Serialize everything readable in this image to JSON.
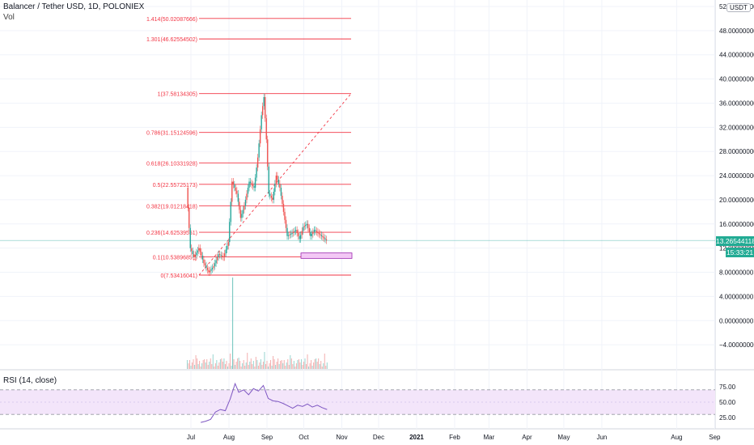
{
  "header": {
    "symbol": "Balancer / Tether USD, 1D, POLONIEX",
    "volume_label": "Vol",
    "currency_badge": "USDT"
  },
  "price_tag": {
    "last_price": "13.26544118",
    "countdown": "15:33:21"
  },
  "rsi": {
    "label": "RSI (14, close)",
    "ticks": [
      "75.00",
      "50.00",
      "25.00"
    ]
  },
  "colors": {
    "up": "#26a69a",
    "down": "#ef5350",
    "fib": "#f23645",
    "rsi_line": "#7e57c2",
    "rsi_band": "#f3e5fa"
  },
  "chart_data": [
    {
      "type": "line",
      "title": "Balancer / Tether USD, 1D, POLONIEX",
      "y_ticks": [
        "52.00000000",
        "48.00000000",
        "44.00000000",
        "40.00000000",
        "36.00000000",
        "32.00000000",
        "28.00000000",
        "24.00000000",
        "20.00000000",
        "16.00000000",
        "12.00000000",
        "8.00000000",
        "4.00000000",
        "0.00000000",
        "−4.00000000"
      ],
      "x_ticks": [
        "Jul",
        "Aug",
        "Sep",
        "Oct",
        "Nov",
        "Dec",
        "2021",
        "Feb",
        "Mar",
        "Apr",
        "May",
        "Jun",
        "Aug",
        "Sep"
      ],
      "ylim": [
        -6,
        53
      ],
      "price_series": {
        "x": [
          "2020-06-28",
          "2020-07-01",
          "2020-07-04",
          "2020-07-08",
          "2020-07-12",
          "2020-07-16",
          "2020-07-20",
          "2020-07-24",
          "2020-07-28",
          "2020-08-01",
          "2020-08-04",
          "2020-08-08",
          "2020-08-11",
          "2020-08-14",
          "2020-08-18",
          "2020-08-22",
          "2020-08-25",
          "2020-08-28",
          "2020-08-30",
          "2020-09-01",
          "2020-09-03",
          "2020-09-06",
          "2020-09-09",
          "2020-09-12",
          "2020-09-15",
          "2020-09-18",
          "2020-09-22",
          "2020-09-25",
          "2020-09-28",
          "2020-10-01",
          "2020-10-04",
          "2020-10-07",
          "2020-10-10",
          "2020-10-13",
          "2020-10-17",
          "2020-10-20"
        ],
        "y": [
          22,
          12,
          10.5,
          12,
          9.5,
          8,
          9,
          11,
          10.5,
          13,
          23,
          21,
          17,
          19,
          23,
          22,
          27,
          34,
          37,
          30,
          21,
          20,
          24,
          22,
          18,
          14,
          14.5,
          15,
          13.5,
          15.5,
          16,
          14,
          15,
          14.5,
          13.8,
          13.27
        ]
      },
      "fib_levels": [
        {
          "label": "1.414(50.02087666)",
          "value": 50.02087666
        },
        {
          "label": "1.301(46.62554502)",
          "value": 46.62554502
        },
        {
          "label": "1(37.58134305)",
          "value": 37.58134305
        },
        {
          "label": "0.786(31.15124596)",
          "value": 31.15124596
        },
        {
          "label": "0.618(26.10331928)",
          "value": 26.10331928
        },
        {
          "label": "0.5(22.55725173)",
          "value": 22.55725173
        },
        {
          "label": "0.382(19.01218418)",
          "value": 19.01218418
        },
        {
          "label": "0.236(14.62539551)",
          "value": 14.62539551
        },
        {
          "label": "0.1(10.53896851)",
          "value": 10.53896851
        },
        {
          "label": "0(7.53416041)",
          "value": 7.53416041
        }
      ],
      "volume_spike": {
        "x": "2020-08-04"
      }
    },
    {
      "type": "line",
      "title": "RSI (14, close)",
      "ylim": [
        15,
        85
      ],
      "y_ticks": [
        "75.00",
        "50.00",
        "25.00"
      ],
      "series": [
        {
          "name": "RSI (14, close)",
          "x": [
            "2020-07-09",
            "2020-07-13",
            "2020-07-17",
            "2020-07-21",
            "2020-07-25",
            "2020-07-29",
            "2020-08-02",
            "2020-08-06",
            "2020-08-09",
            "2020-08-13",
            "2020-08-17",
            "2020-08-21",
            "2020-08-25",
            "2020-08-29",
            "2020-09-02",
            "2020-09-06",
            "2020-09-10",
            "2020-09-14",
            "2020-09-18",
            "2020-09-22",
            "2020-09-26",
            "2020-09-30",
            "2020-10-04",
            "2020-10-08",
            "2020-10-12",
            "2020-10-16",
            "2020-10-20"
          ],
          "values": [
            17,
            19,
            22,
            34,
            38,
            36,
            55,
            80,
            66,
            70,
            62,
            72,
            68,
            77,
            56,
            52,
            51,
            48,
            44,
            40,
            45,
            43,
            47,
            42,
            45,
            41,
            38
          ]
        }
      ]
    }
  ]
}
